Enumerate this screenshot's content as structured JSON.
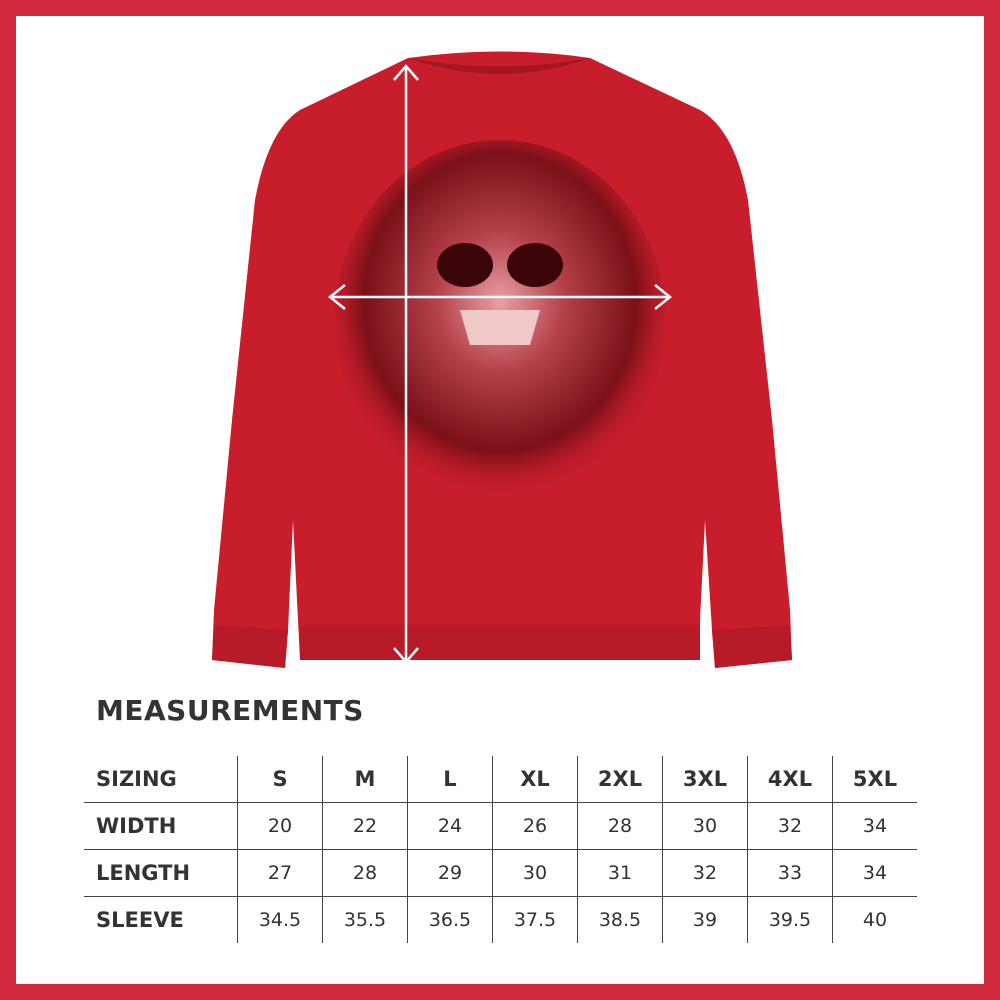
{
  "colors": {
    "border": "#d22b3e",
    "shirt": "#c81e2c",
    "text": "#333333"
  },
  "product": {
    "image": "red sweatshirt with skull print",
    "measure_arrows": [
      "width-arrow",
      "length-arrow"
    ]
  },
  "title": "MEASUREMENTS",
  "table": {
    "header": [
      "SIZING",
      "S",
      "M",
      "L",
      "XL",
      "2XL",
      "3XL",
      "4XL",
      "5XL"
    ],
    "rows": [
      {
        "label": "WIDTH",
        "values": [
          "20",
          "22",
          "24",
          "26",
          "28",
          "30",
          "32",
          "34"
        ]
      },
      {
        "label": "LENGTH",
        "values": [
          "27",
          "28",
          "29",
          "30",
          "31",
          "32",
          "33",
          "34"
        ]
      },
      {
        "label": "SLEEVE",
        "values": [
          "34.5",
          "35.5",
          "36.5",
          "37.5",
          "38.5",
          "39",
          "39.5",
          "40"
        ]
      }
    ]
  }
}
